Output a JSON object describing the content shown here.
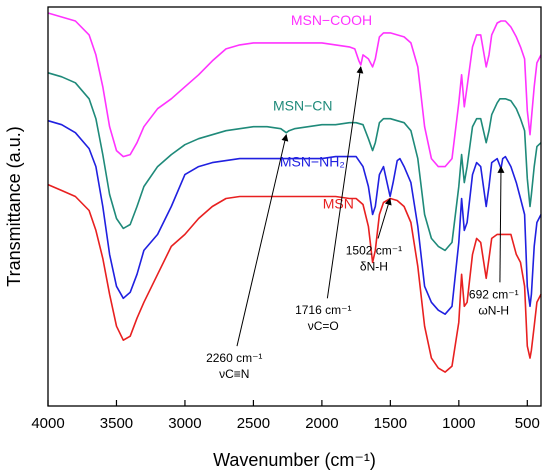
{
  "chart_data": {
    "type": "line",
    "title": "",
    "xlabel": "Wavenumber (cm⁻¹)",
    "ylabel": "Transmittance (a.u.)",
    "x_reversed": true,
    "xlim": [
      4000,
      400
    ],
    "ylim": [
      0,
      1
    ],
    "grid": false,
    "x_ticks": [
      4000,
      3500,
      3000,
      2500,
      2000,
      1500,
      1000,
      500
    ],
    "x_tick_labels": [
      "4000",
      "3500",
      "3000",
      "2500",
      "2000",
      "1500",
      "1000",
      "500"
    ],
    "series": [
      {
        "name": "MSN−COOH",
        "color": "#ff33ff",
        "label_at": [
          1930,
          0.955
        ],
        "points": [
          [
            4000,
            0.985
          ],
          [
            3900,
            0.975
          ],
          [
            3800,
            0.965
          ],
          [
            3700,
            0.93
          ],
          [
            3650,
            0.88
          ],
          [
            3600,
            0.8
          ],
          [
            3550,
            0.7
          ],
          [
            3500,
            0.64
          ],
          [
            3450,
            0.625
          ],
          [
            3400,
            0.63
          ],
          [
            3350,
            0.66
          ],
          [
            3300,
            0.7
          ],
          [
            3200,
            0.745
          ],
          [
            3100,
            0.77
          ],
          [
            3000,
            0.8
          ],
          [
            2900,
            0.83
          ],
          [
            2800,
            0.865
          ],
          [
            2700,
            0.895
          ],
          [
            2600,
            0.905
          ],
          [
            2500,
            0.91
          ],
          [
            2400,
            0.91
          ],
          [
            2300,
            0.91
          ],
          [
            2200,
            0.91
          ],
          [
            2100,
            0.91
          ],
          [
            2000,
            0.91
          ],
          [
            1900,
            0.905
          ],
          [
            1800,
            0.9
          ],
          [
            1760,
            0.895
          ],
          [
            1730,
            0.865
          ],
          [
            1716,
            0.855
          ],
          [
            1700,
            0.88
          ],
          [
            1660,
            0.87
          ],
          [
            1630,
            0.85
          ],
          [
            1610,
            0.87
          ],
          [
            1580,
            0.925
          ],
          [
            1550,
            0.935
          ],
          [
            1500,
            0.935
          ],
          [
            1450,
            0.93
          ],
          [
            1400,
            0.925
          ],
          [
            1350,
            0.91
          ],
          [
            1300,
            0.85
          ],
          [
            1250,
            0.7
          ],
          [
            1200,
            0.62
          ],
          [
            1150,
            0.6
          ],
          [
            1100,
            0.6
          ],
          [
            1050,
            0.62
          ],
          [
            1000,
            0.76
          ],
          [
            980,
            0.83
          ],
          [
            960,
            0.75
          ],
          [
            940,
            0.8
          ],
          [
            900,
            0.9
          ],
          [
            870,
            0.93
          ],
          [
            840,
            0.93
          ],
          [
            800,
            0.85
          ],
          [
            780,
            0.88
          ],
          [
            760,
            0.93
          ],
          [
            720,
            0.96
          ],
          [
            692,
            0.965
          ],
          [
            660,
            0.965
          ],
          [
            620,
            0.95
          ],
          [
            580,
            0.925
          ],
          [
            550,
            0.9
          ],
          [
            520,
            0.87
          ],
          [
            500,
            0.74
          ],
          [
            480,
            0.68
          ],
          [
            470,
            0.72
          ],
          [
            450,
            0.8
          ],
          [
            430,
            0.86
          ],
          [
            400,
            0.88
          ]
        ]
      },
      {
        "name": "MSN−CN",
        "color": "#1f8a7a",
        "label_at": [
          2140,
          0.74
        ],
        "points": [
          [
            4000,
            0.835
          ],
          [
            3900,
            0.825
          ],
          [
            3800,
            0.81
          ],
          [
            3700,
            0.77
          ],
          [
            3650,
            0.72
          ],
          [
            3600,
            0.63
          ],
          [
            3550,
            0.53
          ],
          [
            3500,
            0.47
          ],
          [
            3450,
            0.445
          ],
          [
            3400,
            0.455
          ],
          [
            3350,
            0.5
          ],
          [
            3300,
            0.55
          ],
          [
            3200,
            0.6
          ],
          [
            3100,
            0.63
          ],
          [
            3000,
            0.655
          ],
          [
            2900,
            0.67
          ],
          [
            2800,
            0.68
          ],
          [
            2700,
            0.69
          ],
          [
            2600,
            0.695
          ],
          [
            2500,
            0.7
          ],
          [
            2400,
            0.7
          ],
          [
            2300,
            0.695
          ],
          [
            2260,
            0.685
          ],
          [
            2240,
            0.69
          ],
          [
            2200,
            0.695
          ],
          [
            2100,
            0.7
          ],
          [
            2000,
            0.705
          ],
          [
            1900,
            0.705
          ],
          [
            1800,
            0.71
          ],
          [
            1750,
            0.71
          ],
          [
            1700,
            0.705
          ],
          [
            1660,
            0.67
          ],
          [
            1630,
            0.64
          ],
          [
            1610,
            0.66
          ],
          [
            1580,
            0.71
          ],
          [
            1550,
            0.72
          ],
          [
            1500,
            0.72
          ],
          [
            1450,
            0.715
          ],
          [
            1400,
            0.71
          ],
          [
            1350,
            0.69
          ],
          [
            1300,
            0.62
          ],
          [
            1250,
            0.48
          ],
          [
            1200,
            0.42
          ],
          [
            1150,
            0.4
          ],
          [
            1100,
            0.39
          ],
          [
            1050,
            0.41
          ],
          [
            1000,
            0.55
          ],
          [
            980,
            0.63
          ],
          [
            960,
            0.56
          ],
          [
            940,
            0.6
          ],
          [
            900,
            0.7
          ],
          [
            870,
            0.72
          ],
          [
            840,
            0.72
          ],
          [
            800,
            0.66
          ],
          [
            780,
            0.69
          ],
          [
            760,
            0.73
          ],
          [
            720,
            0.76
          ],
          [
            700,
            0.77
          ],
          [
            660,
            0.77
          ],
          [
            620,
            0.765
          ],
          [
            580,
            0.745
          ],
          [
            550,
            0.72
          ],
          [
            520,
            0.69
          ],
          [
            500,
            0.57
          ],
          [
            480,
            0.5
          ],
          [
            470,
            0.53
          ],
          [
            450,
            0.6
          ],
          [
            430,
            0.65
          ],
          [
            400,
            0.66
          ]
        ]
      },
      {
        "name": "MSN−NH₂",
        "color": "#2020e0",
        "label_at": [
          2070,
          0.6
        ],
        "points": [
          [
            4000,
            0.715
          ],
          [
            3900,
            0.705
          ],
          [
            3800,
            0.685
          ],
          [
            3700,
            0.645
          ],
          [
            3650,
            0.6
          ],
          [
            3600,
            0.5
          ],
          [
            3550,
            0.38
          ],
          [
            3500,
            0.3
          ],
          [
            3450,
            0.27
          ],
          [
            3400,
            0.285
          ],
          [
            3350,
            0.33
          ],
          [
            3300,
            0.39
          ],
          [
            3200,
            0.43
          ],
          [
            3100,
            0.5
          ],
          [
            3000,
            0.58
          ],
          [
            2900,
            0.6
          ],
          [
            2800,
            0.61
          ],
          [
            2700,
            0.615
          ],
          [
            2600,
            0.62
          ],
          [
            2500,
            0.62
          ],
          [
            2400,
            0.62
          ],
          [
            2300,
            0.62
          ],
          [
            2200,
            0.62
          ],
          [
            2100,
            0.62
          ],
          [
            2000,
            0.62
          ],
          [
            1900,
            0.625
          ],
          [
            1800,
            0.625
          ],
          [
            1750,
            0.625
          ],
          [
            1700,
            0.6
          ],
          [
            1660,
            0.55
          ],
          [
            1630,
            0.48
          ],
          [
            1610,
            0.5
          ],
          [
            1580,
            0.58
          ],
          [
            1550,
            0.6
          ],
          [
            1502,
            0.525
          ],
          [
            1480,
            0.56
          ],
          [
            1450,
            0.615
          ],
          [
            1430,
            0.62
          ],
          [
            1400,
            0.6
          ],
          [
            1350,
            0.56
          ],
          [
            1300,
            0.45
          ],
          [
            1250,
            0.3
          ],
          [
            1200,
            0.26
          ],
          [
            1150,
            0.24
          ],
          [
            1100,
            0.23
          ],
          [
            1050,
            0.25
          ],
          [
            1000,
            0.41
          ],
          [
            980,
            0.52
          ],
          [
            960,
            0.44
          ],
          [
            940,
            0.46
          ],
          [
            900,
            0.58
          ],
          [
            870,
            0.61
          ],
          [
            840,
            0.6
          ],
          [
            800,
            0.5
          ],
          [
            780,
            0.55
          ],
          [
            760,
            0.61
          ],
          [
            720,
            0.62
          ],
          [
            692,
            0.595
          ],
          [
            680,
            0.62
          ],
          [
            660,
            0.625
          ],
          [
            620,
            0.6
          ],
          [
            580,
            0.56
          ],
          [
            550,
            0.52
          ],
          [
            520,
            0.48
          ],
          [
            500,
            0.3
          ],
          [
            480,
            0.25
          ],
          [
            470,
            0.28
          ],
          [
            450,
            0.4
          ],
          [
            430,
            0.46
          ],
          [
            400,
            0.48
          ]
        ]
      },
      {
        "name": "MSN",
        "color": "#e82020",
        "label_at": [
          1880,
          0.495
        ],
        "points": [
          [
            4000,
            0.555
          ],
          [
            3900,
            0.54
          ],
          [
            3800,
            0.525
          ],
          [
            3700,
            0.49
          ],
          [
            3650,
            0.44
          ],
          [
            3600,
            0.37
          ],
          [
            3550,
            0.28
          ],
          [
            3500,
            0.2
          ],
          [
            3450,
            0.165
          ],
          [
            3400,
            0.175
          ],
          [
            3350,
            0.22
          ],
          [
            3300,
            0.26
          ],
          [
            3200,
            0.33
          ],
          [
            3100,
            0.4
          ],
          [
            3000,
            0.43
          ],
          [
            2900,
            0.47
          ],
          [
            2800,
            0.5
          ],
          [
            2700,
            0.52
          ],
          [
            2600,
            0.525
          ],
          [
            2500,
            0.525
          ],
          [
            2400,
            0.525
          ],
          [
            2300,
            0.525
          ],
          [
            2200,
            0.525
          ],
          [
            2100,
            0.525
          ],
          [
            2000,
            0.525
          ],
          [
            1900,
            0.525
          ],
          [
            1800,
            0.52
          ],
          [
            1750,
            0.52
          ],
          [
            1700,
            0.505
          ],
          [
            1660,
            0.45
          ],
          [
            1630,
            0.36
          ],
          [
            1610,
            0.39
          ],
          [
            1580,
            0.48
          ],
          [
            1550,
            0.51
          ],
          [
            1500,
            0.52
          ],
          [
            1450,
            0.515
          ],
          [
            1400,
            0.5
          ],
          [
            1350,
            0.46
          ],
          [
            1300,
            0.35
          ],
          [
            1250,
            0.2
          ],
          [
            1200,
            0.12
          ],
          [
            1150,
            0.095
          ],
          [
            1100,
            0.085
          ],
          [
            1050,
            0.1
          ],
          [
            1000,
            0.21
          ],
          [
            980,
            0.33
          ],
          [
            960,
            0.25
          ],
          [
            940,
            0.26
          ],
          [
            900,
            0.38
          ],
          [
            870,
            0.42
          ],
          [
            840,
            0.41
          ],
          [
            800,
            0.32
          ],
          [
            780,
            0.37
          ],
          [
            760,
            0.42
          ],
          [
            720,
            0.43
          ],
          [
            700,
            0.43
          ],
          [
            660,
            0.43
          ],
          [
            620,
            0.43
          ],
          [
            580,
            0.38
          ],
          [
            550,
            0.36
          ],
          [
            520,
            0.3
          ],
          [
            500,
            0.15
          ],
          [
            480,
            0.12
          ],
          [
            470,
            0.14
          ],
          [
            450,
            0.2
          ],
          [
            430,
            0.26
          ],
          [
            400,
            0.28
          ]
        ]
      }
    ],
    "annotations": [
      {
        "id": "a2260",
        "lines": [
          "2260 cm⁻¹",
          "νC≡N"
        ],
        "text_at": [
          2640,
          0.11
        ],
        "arrow_from": [
          2620,
          0.15
        ],
        "arrow_to": [
          2260,
          0.68
        ]
      },
      {
        "id": "a1716",
        "lines": [
          "1716 cm⁻¹",
          "νC=O"
        ],
        "text_at": [
          1990,
          0.23
        ],
        "arrow_from": [
          1960,
          0.27
        ],
        "arrow_to": [
          1716,
          0.85
        ]
      },
      {
        "id": "a1502",
        "lines": [
          "1502 cm⁻¹",
          "δN-H"
        ],
        "text_at": [
          1620,
          0.38
        ],
        "arrow_from": [
          1590,
          0.42
        ],
        "arrow_to": [
          1502,
          0.52
        ]
      },
      {
        "id": "a692",
        "lines": [
          "692 cm⁻¹",
          "ωN-H"
        ],
        "text_at": [
          745,
          0.27
        ],
        "arrow_from": [
          700,
          0.31
        ],
        "arrow_to": [
          692,
          0.6
        ]
      }
    ]
  }
}
